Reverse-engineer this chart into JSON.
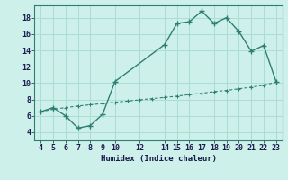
{
  "xlabel": "Humidex (Indice chaleur)",
  "curve_x": [
    4,
    5,
    6,
    7,
    8,
    9,
    10,
    14,
    15,
    16,
    17,
    18,
    19,
    20,
    21,
    22,
    23
  ],
  "curve_y": [
    6.5,
    7.0,
    6.0,
    4.5,
    4.8,
    6.2,
    10.2,
    14.7,
    17.3,
    17.5,
    18.8,
    17.3,
    18.0,
    16.3,
    13.9,
    14.6,
    10.2
  ],
  "line_x": [
    4,
    5,
    6,
    7,
    8,
    9,
    10,
    11,
    12,
    13,
    14,
    15,
    16,
    17,
    18,
    19,
    20,
    21,
    22,
    23
  ],
  "line_y": [
    6.5,
    6.8,
    7.0,
    7.2,
    7.35,
    7.5,
    7.65,
    7.8,
    7.95,
    8.1,
    8.25,
    8.4,
    8.6,
    8.75,
    8.95,
    9.1,
    9.3,
    9.5,
    9.75,
    10.1
  ],
  "line_color": "#2e7f72",
  "bg_color": "#cdf0ea",
  "grid_color": "#aaddd5",
  "xlim": [
    3.5,
    23.5
  ],
  "ylim": [
    3,
    19.5
  ],
  "xticks": [
    4,
    5,
    6,
    7,
    8,
    9,
    10,
    12,
    14,
    15,
    16,
    17,
    18,
    19,
    20,
    21,
    22,
    23
  ],
  "yticks": [
    4,
    6,
    8,
    10,
    12,
    14,
    16,
    18
  ]
}
